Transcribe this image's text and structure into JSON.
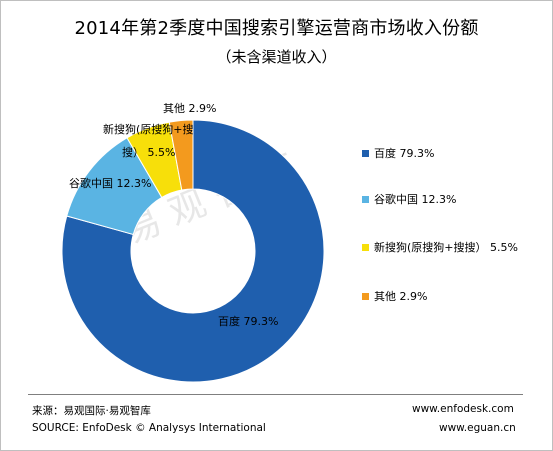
{
  "title": "2014年第2季度中国搜索引擎运营商市场收入份额",
  "subtitle": "（未含渠道收入）",
  "watermark": "易观智库",
  "chart_data": {
    "type": "pie",
    "donut": true,
    "legend_placement": "right",
    "slices": [
      {
        "label": "百度",
        "value": 79.3,
        "value_label": "79.3%",
        "color": "#1f5fae"
      },
      {
        "label": "谷歌中国",
        "value": 12.3,
        "value_label": "12.3%",
        "color": "#5ab4e3"
      },
      {
        "label": "新搜狗(原搜狗+搜搜）",
        "value": 5.5,
        "value_label": "5.5%",
        "color": "#f7df0a"
      },
      {
        "label": "其他",
        "value": 2.9,
        "value_label": "2.9%",
        "color": "#f39a1e"
      }
    ],
    "slice_labels": [
      "百度 79.3%",
      "谷歌中国 12.3%",
      "新搜狗(原搜狗+搜",
      "搜） 5.5%",
      "其他 2.9%"
    ]
  },
  "legend": [
    {
      "text": "百度 79.3%",
      "color": "#1f5fae"
    },
    {
      "text": "谷歌中国 12.3%",
      "color": "#5ab4e3"
    },
    {
      "text": "新搜狗(原搜狗+搜搜） 5.5%",
      "color": "#f7df0a"
    },
    {
      "text": "其他 2.9%",
      "color": "#f39a1e"
    }
  ],
  "footer": {
    "source_cn": "来源：易观国际·易观智库",
    "source_en": "SOURCE: EnfoDesk © Analysys International",
    "url1": "www.enfodesk.com",
    "url2": "www.eguan.cn"
  }
}
